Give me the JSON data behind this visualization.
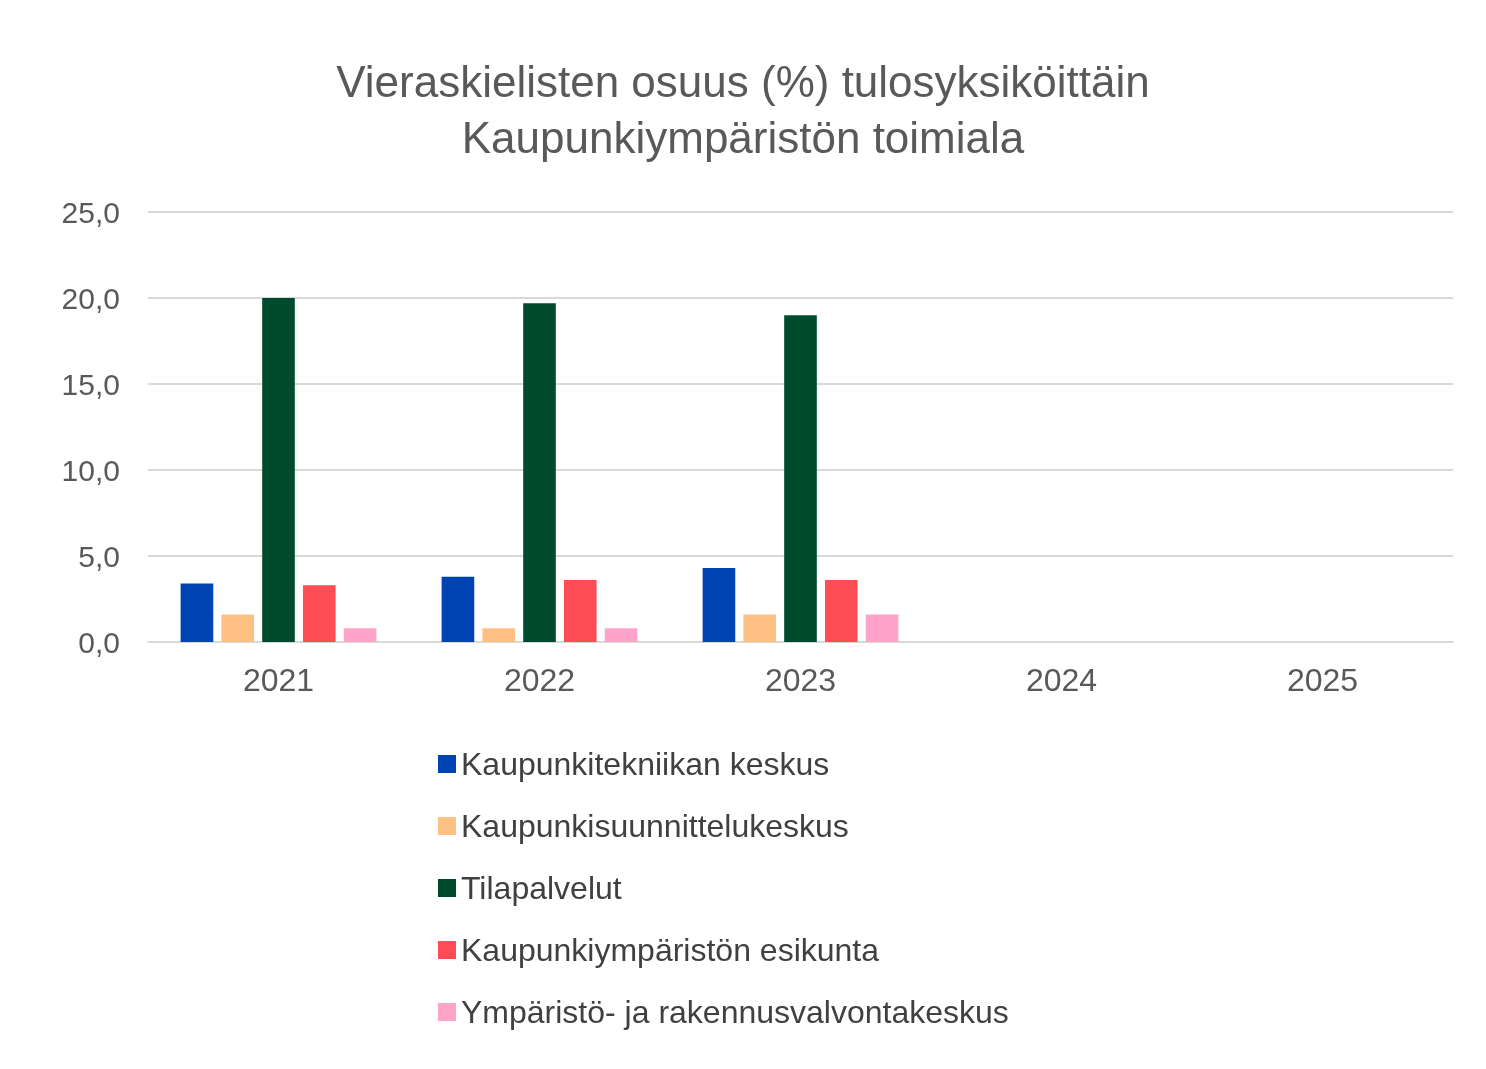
{
  "chart_data": {
    "type": "bar",
    "title": "Vieraskielisten osuus (%) tulosyksiköittäin\nKaupunkiympäristön toimiala",
    "categories": [
      "2021",
      "2022",
      "2023",
      "2024",
      "2025"
    ],
    "series": [
      {
        "name": "Kaupunkitekniikan keskus",
        "color": "#0043b5",
        "values": [
          3.4,
          3.8,
          4.3,
          null,
          null
        ]
      },
      {
        "name": "Kaupunkisuunnittelukeskus",
        "color": "#ffc083",
        "values": [
          1.6,
          0.8,
          1.6,
          null,
          null
        ]
      },
      {
        "name": "Tilapalvelut",
        "color": "#004a2e",
        "values": [
          20.0,
          19.7,
          19.0,
          null,
          null
        ]
      },
      {
        "name": "Kaupunkiympäristön esikunta",
        "color": "#ff4d55",
        "values": [
          3.3,
          3.6,
          3.6,
          null,
          null
        ]
      },
      {
        "name": "Ympäristö- ja rakennusvalvontakeskus",
        "color": "#ffa3c8",
        "values": [
          0.8,
          0.8,
          1.6,
          null,
          null
        ]
      }
    ],
    "ylim": [
      0,
      25
    ],
    "yticks": [
      {
        "value": 0,
        "label": "0,0"
      },
      {
        "value": 5,
        "label": "5,0"
      },
      {
        "value": 10,
        "label": "10,0"
      },
      {
        "value": 15,
        "label": "15,0"
      },
      {
        "value": 20,
        "label": "20,0"
      },
      {
        "value": 25,
        "label": "25,0"
      }
    ],
    "grid": "y",
    "legend": "bottom"
  }
}
